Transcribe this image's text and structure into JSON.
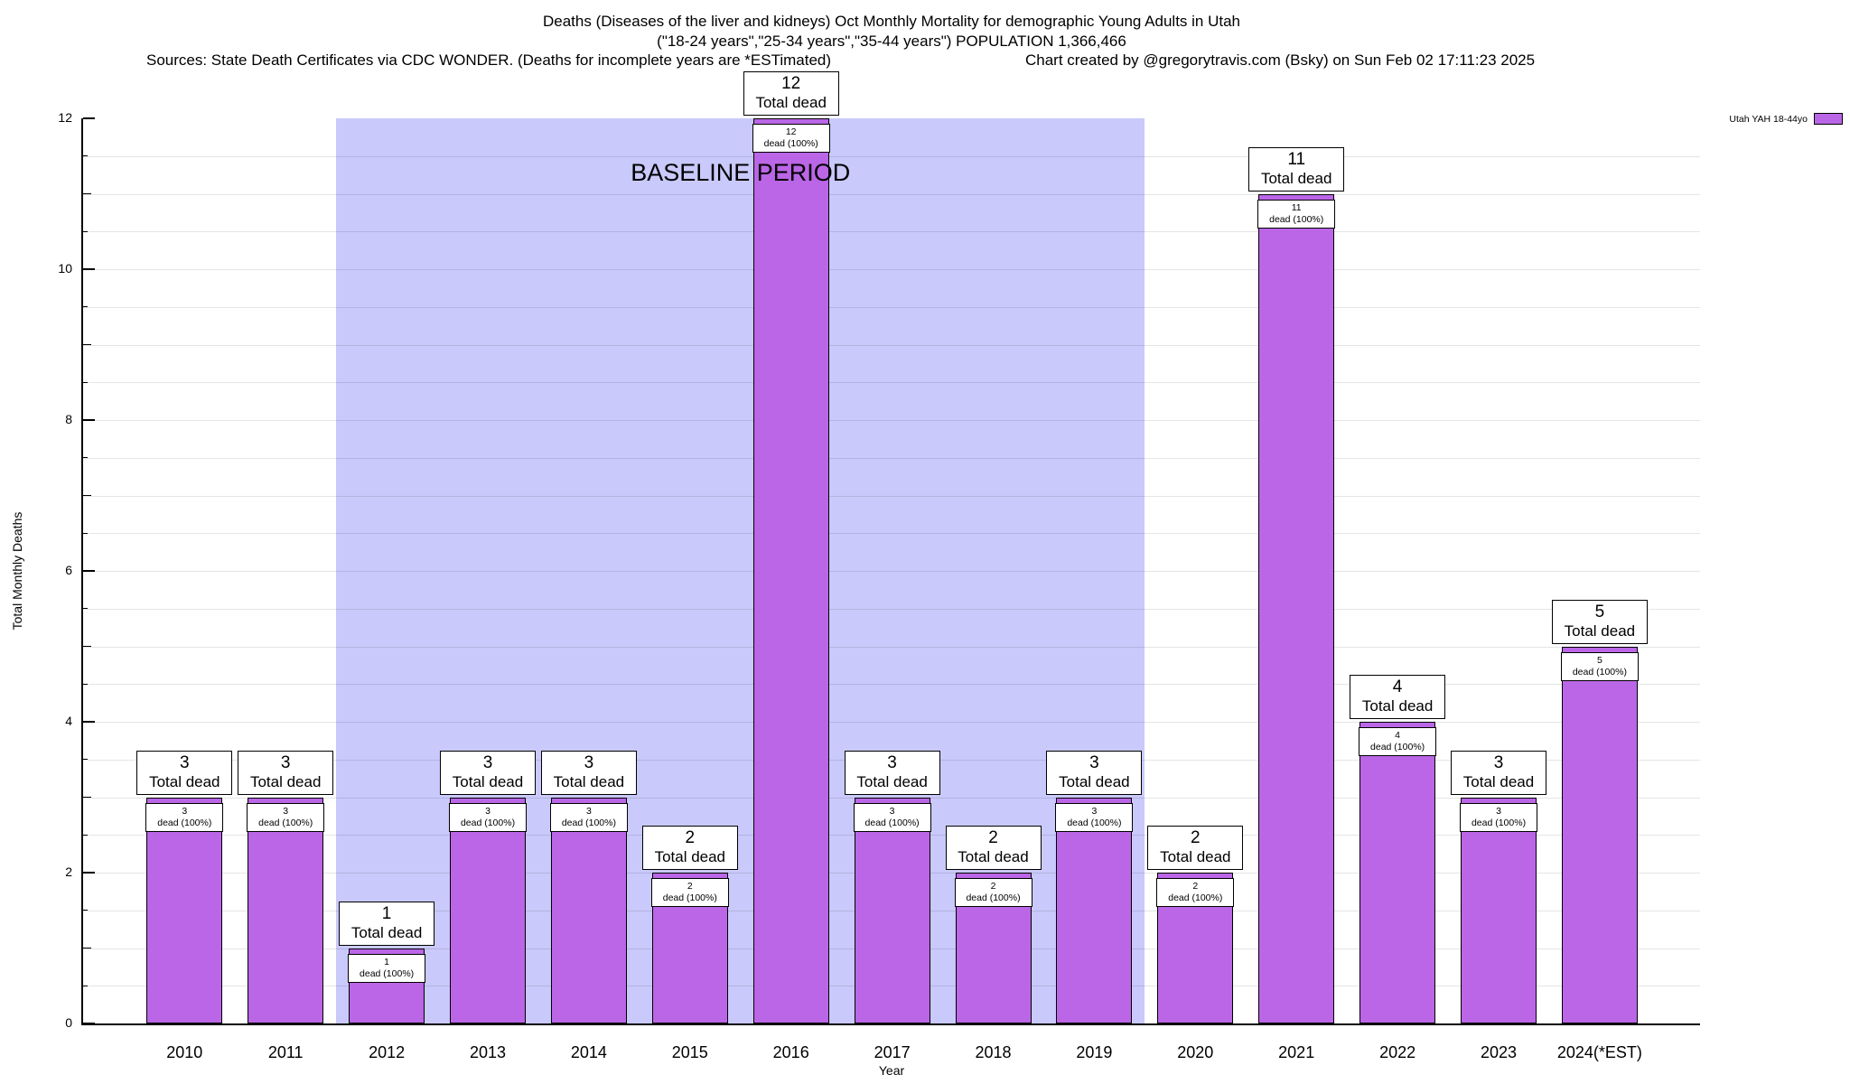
{
  "chart_data": {
    "type": "bar",
    "title": "Deaths (Diseases of the liver and kidneys) Oct Monthly Mortality for demographic Young Adults in Utah",
    "subtitle": "(\"18-24 years\",\"25-34 years\",\"35-44 years\") POPULATION 1,366,466",
    "sources_note": "Sources: State Death Certificates via CDC WONDER. (Deaths for incomplete years are *ESTimated)",
    "credit_note": "Chart created by @gregorytravis.com (Bsky) on Sun Feb 02 17:11:23 2025",
    "categories": [
      "2010",
      "2011",
      "2012",
      "2013",
      "2014",
      "2015",
      "2016",
      "2017",
      "2018",
      "2019",
      "2020",
      "2021",
      "2022",
      "2023",
      "2024(*EST)"
    ],
    "series": [
      {
        "name": "Utah YAH 18-44yo",
        "values": [
          3,
          3,
          1,
          3,
          3,
          2,
          12,
          3,
          2,
          3,
          2,
          11,
          4,
          3,
          5
        ]
      }
    ],
    "bar_top_label": "Total dead",
    "bar_inner_label": "dead (100%)",
    "xlabel": "Year",
    "ylabel": "Total Monthly Deaths",
    "ylim": [
      0,
      12
    ],
    "yticks": [
      0,
      2,
      4,
      6,
      8,
      10,
      12
    ],
    "grid": "minor-horizontal",
    "legend_position": "top-right",
    "baseline_region": {
      "label": "BASELINE PERIOD",
      "from_category": "2012",
      "to_category": "2019"
    },
    "colors": {
      "bar_fill": "#ba66e6",
      "bar_border": "#000000",
      "baseline_bg": "#c9c9fb"
    }
  }
}
